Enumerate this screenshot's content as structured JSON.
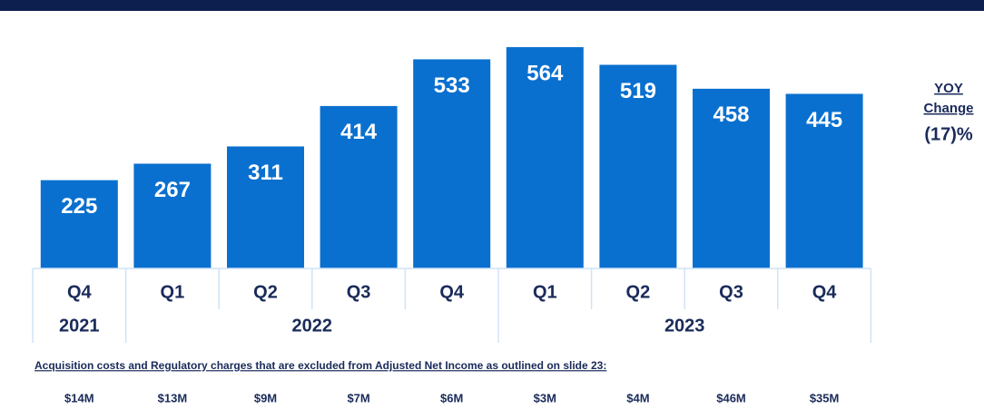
{
  "chart_data": {
    "type": "bar",
    "color": "#0a70cf",
    "groups": [
      {
        "name": "2021",
        "categories": [
          "Q4"
        ],
        "values": [
          225
        ],
        "costs": [
          14
        ],
        "cost_labels": [
          "$14M"
        ]
      },
      {
        "name": "2022",
        "categories": [
          "Q1",
          "Q2",
          "Q3",
          "Q4"
        ],
        "values": [
          267,
          311,
          414,
          533
        ],
        "costs": [
          13,
          9,
          7,
          6
        ],
        "cost_labels": [
          "$13M",
          "$9M",
          "$7M",
          "$6M"
        ]
      },
      {
        "name": "2023",
        "categories": [
          "Q1",
          "Q2",
          "Q3",
          "Q4"
        ],
        "values": [
          564,
          519,
          458,
          445
        ],
        "costs": [
          3,
          4,
          46,
          35
        ],
        "cost_labels": [
          "$3M",
          "$4M",
          "$46M",
          "$35M"
        ]
      }
    ],
    "costs_title": "Acquisition costs and Regulatory charges that are excluded from Adjusted Net Income as outlined on slide 23:",
    "yoy": {
      "label": "YOY",
      "sublabel": "Change",
      "value": -17,
      "value_label": "(17)%"
    }
  }
}
